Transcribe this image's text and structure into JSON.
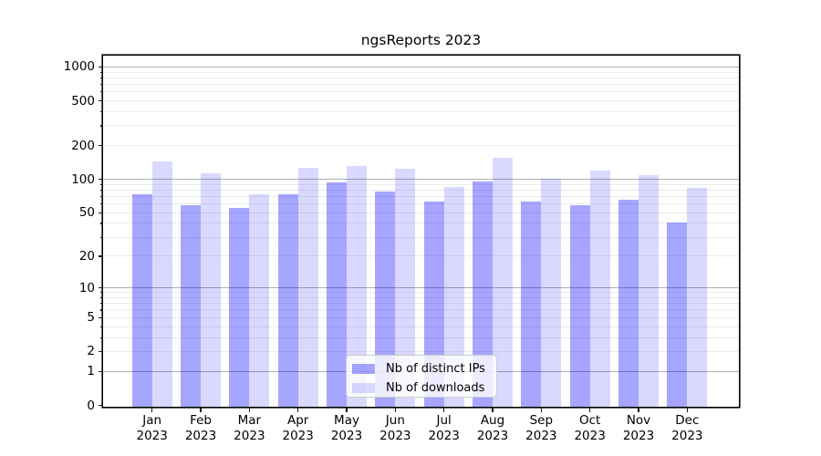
{
  "chart_data": {
    "type": "bar",
    "title": "ngsReports 2023",
    "xlabel": "",
    "ylabel": "",
    "y_scale": "log10(1+x)",
    "ylim": [
      0,
      1260
    ],
    "grid": {
      "decade_line_color": "#b0b0b0",
      "minor_line_color": "#ebebeb"
    },
    "legend_position": "lower center",
    "year": "2023",
    "months": [
      "Jan",
      "Feb",
      "Mar",
      "Apr",
      "May",
      "Jun",
      "Jul",
      "Aug",
      "Sep",
      "Oct",
      "Nov",
      "Dec"
    ],
    "categories": [
      "Jan 2023",
      "Feb 2023",
      "Mar 2023",
      "Apr 2023",
      "May 2023",
      "Jun 2023",
      "Jul 2023",
      "Aug 2023",
      "Sep 2023",
      "Oct 2023",
      "Nov 2023",
      "Dec 2023"
    ],
    "y_ticks_labeled": [
      0,
      1,
      2,
      5,
      10,
      20,
      50,
      100,
      200,
      500,
      1000
    ],
    "y_minor_ticks": [
      3,
      4,
      6,
      7,
      8,
      9,
      30,
      40,
      60,
      70,
      80,
      90,
      300,
      400,
      600,
      700,
      800,
      900
    ],
    "series": [
      {
        "name": "Nb of distinct IPs",
        "color": "#0000ff",
        "opacity": 0.35,
        "rendered_color": "#a6a6ff",
        "values": [
          74,
          59,
          55,
          73,
          93,
          78,
          63,
          95,
          63,
          59,
          66,
          41
        ]
      },
      {
        "name": "Nb of downloads",
        "color": "#0000ff",
        "opacity": 0.15,
        "rendered_color": "#d9d9ff",
        "values": [
          145,
          113,
          74,
          127,
          131,
          125,
          85,
          155,
          101,
          120,
          108,
          83
        ]
      }
    ]
  }
}
